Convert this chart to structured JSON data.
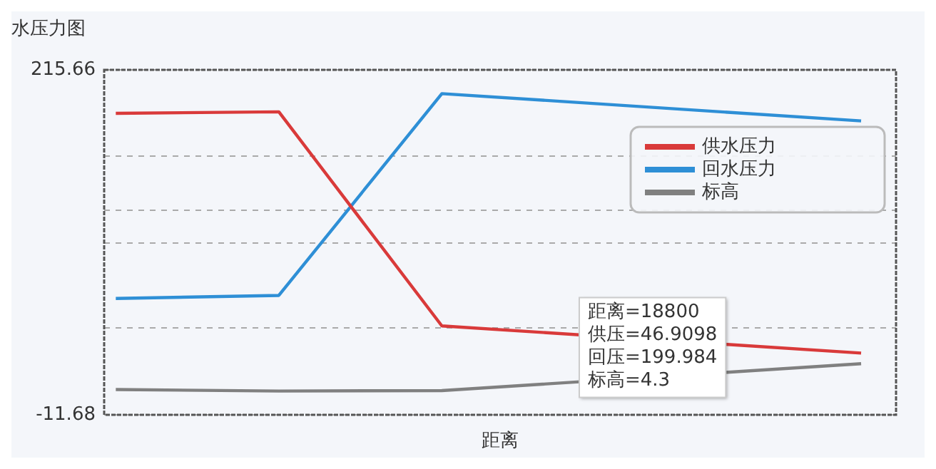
{
  "chart_data": {
    "type": "line",
    "title": "水压力图",
    "xlabel": "距离",
    "categories": [
      null,
      null,
      null,
      null,
      null,
      null,
      null,
      null,
      null,
      null,
      null,
      null,
      null,
      null,
      null,
      null,
      null,
      null,
      null,
      null,
      null,
      null,
      null,
      null,
      null,
      null,
      null,
      null,
      null,
      null,
      null,
      null,
      null,
      null
    ],
    "ylim": [
      -11.68,
      215.66
    ],
    "yticks": [
      -11.68,
      {
        "value": 45.4,
        "label": null
      },
      {
        "value": 101.5,
        "label": null
      },
      {
        "value": 123.2,
        "label": null
      },
      {
        "value": 158.6,
        "label": null
      },
      215.66
    ],
    "tick_labels": "y",
    "grid": "y",
    "legend": "top right",
    "marker": "none",
    "line_style": "solid",
    "series": [
      {
        "name": "供水压力",
        "color": "#d93a3a",
        "values": [
          187,
          null,
          null,
          null,
          null,
          null,
          null,
          188,
          null,
          null,
          null,
          null,
          null,
          null,
          46.9098,
          null,
          null,
          null,
          null,
          null,
          null,
          null,
          null,
          null,
          null,
          null,
          null,
          null,
          null,
          null,
          null,
          null,
          29,
          null
        ]
      },
      {
        "name": "回水压力",
        "color": "#2e8fd6",
        "values": [
          65,
          null,
          null,
          null,
          null,
          null,
          null,
          67,
          null,
          null,
          null,
          null,
          null,
          null,
          199.984,
          null,
          null,
          null,
          null,
          null,
          null,
          null,
          null,
          null,
          null,
          null,
          null,
          null,
          null,
          null,
          null,
          null,
          182,
          null
        ]
      },
      {
        "name": "标高",
        "color": "#808080",
        "values": [
          5,
          null,
          null,
          null,
          null,
          null,
          null,
          4,
          null,
          null,
          null,
          null,
          null,
          null,
          4.3,
          null,
          null,
          null,
          null,
          null,
          null,
          null,
          null,
          null,
          null,
          null,
          null,
          null,
          null,
          null,
          null,
          null,
          22,
          null
        ]
      }
    ],
    "annotations": [
      "距离=18800\n供压=46.9098\n回压=199.984\n标高=4.3"
    ]
  }
}
